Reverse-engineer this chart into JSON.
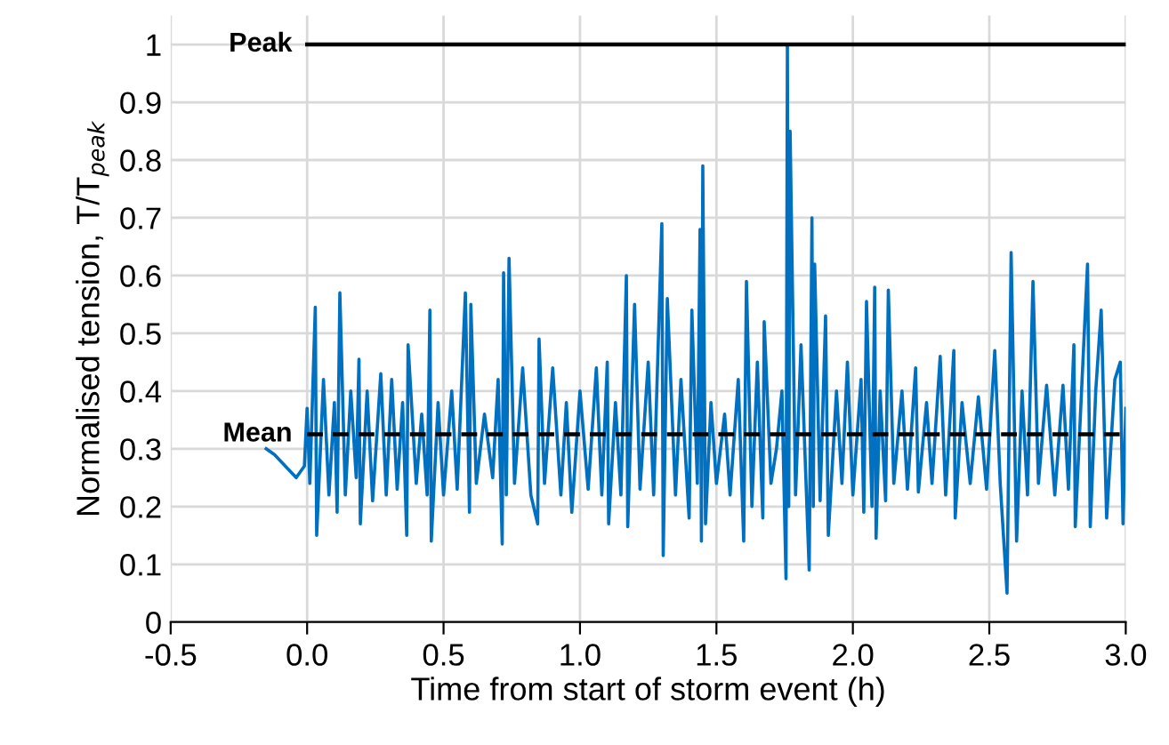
{
  "chart_data": {
    "type": "line",
    "xlabel": "Time from start of storm event (h)",
    "ylabel": "Normalised tension, T/T$_{peak}$",
    "xlim": [
      -0.5,
      3.0
    ],
    "xticks": [
      {
        "value": -0.5,
        "label": "-0.5"
      },
      {
        "value": 0,
        "label": "0.0"
      },
      {
        "value": 0.5,
        "label": "0.5"
      },
      {
        "value": 1,
        "label": "1.0"
      },
      {
        "value": 1.5,
        "label": "1.5"
      },
      {
        "value": 2,
        "label": "2.0"
      },
      {
        "value": 2.5,
        "label": "2.5"
      },
      {
        "value": 3,
        "label": "3.0"
      }
    ],
    "ylim": [
      0,
      1.05
    ],
    "yticks": [
      0,
      0.1,
      0.2,
      0.3,
      0.4,
      0.5,
      0.6,
      0.7,
      0.8,
      0.9,
      1
    ],
    "grid": true,
    "legend": false,
    "series": [
      {
        "color": "#0070c0",
        "line_style": "solid",
        "x": [
          -0.15,
          -0.12,
          -0.08,
          -0.04,
          -0.01,
          0.0,
          0.01,
          0.03,
          0.035,
          0.06,
          0.08,
          0.1,
          0.11,
          0.12,
          0.14,
          0.16,
          0.18,
          0.19,
          0.195,
          0.22,
          0.24,
          0.27,
          0.29,
          0.31,
          0.33,
          0.35,
          0.365,
          0.37,
          0.4,
          0.42,
          0.44,
          0.45,
          0.455,
          0.48,
          0.5,
          0.53,
          0.55,
          0.58,
          0.595,
          0.6,
          0.62,
          0.65,
          0.68,
          0.7,
          0.715,
          0.72,
          0.73,
          0.74,
          0.76,
          0.79,
          0.82,
          0.845,
          0.85,
          0.87,
          0.9,
          0.93,
          0.95,
          0.97,
          1.0,
          1.03,
          1.06,
          1.08,
          1.1,
          1.105,
          1.13,
          1.15,
          1.17,
          1.175,
          1.2,
          1.22,
          1.25,
          1.27,
          1.3,
          1.305,
          1.32,
          1.35,
          1.37,
          1.4,
          1.41,
          1.43,
          1.44,
          1.445,
          1.45,
          1.46,
          1.48,
          1.5,
          1.53,
          1.55,
          1.58,
          1.6,
          1.61,
          1.63,
          1.65,
          1.67,
          1.675,
          1.7,
          1.72,
          1.74,
          1.755,
          1.76,
          1.765,
          1.77,
          1.79,
          1.81,
          1.84,
          1.85,
          1.855,
          1.86,
          1.88,
          1.9,
          1.91,
          1.94,
          1.96,
          1.98,
          2.0,
          2.03,
          2.04,
          2.05,
          2.07,
          2.08,
          2.085,
          2.1,
          2.12,
          2.13,
          2.15,
          2.18,
          2.2,
          2.23,
          2.24,
          2.27,
          2.29,
          2.32,
          2.34,
          2.37,
          2.375,
          2.4,
          2.43,
          2.46,
          2.49,
          2.52,
          2.54,
          2.565,
          2.58,
          2.6,
          2.62,
          2.64,
          2.66,
          2.68,
          2.71,
          2.74,
          2.77,
          2.79,
          2.81,
          2.815,
          2.84,
          2.86,
          2.87,
          2.89,
          2.91,
          2.93,
          2.96,
          2.98,
          2.99,
          3.0
        ],
        "values": [
          0.3,
          0.29,
          0.27,
          0.25,
          0.27,
          0.37,
          0.24,
          0.545,
          0.15,
          0.42,
          0.22,
          0.38,
          0.19,
          0.57,
          0.22,
          0.4,
          0.25,
          0.455,
          0.17,
          0.4,
          0.21,
          0.43,
          0.22,
          0.42,
          0.23,
          0.38,
          0.15,
          0.48,
          0.24,
          0.36,
          0.22,
          0.54,
          0.14,
          0.38,
          0.22,
          0.4,
          0.23,
          0.57,
          0.19,
          0.55,
          0.24,
          0.36,
          0.25,
          0.42,
          0.135,
          0.605,
          0.22,
          0.63,
          0.24,
          0.44,
          0.22,
          0.17,
          0.49,
          0.24,
          0.44,
          0.22,
          0.38,
          0.19,
          0.4,
          0.23,
          0.44,
          0.22,
          0.45,
          0.17,
          0.38,
          0.22,
          0.6,
          0.165,
          0.55,
          0.23,
          0.45,
          0.22,
          0.69,
          0.115,
          0.56,
          0.22,
          0.42,
          0.18,
          0.54,
          0.24,
          0.68,
          0.14,
          0.79,
          0.17,
          0.38,
          0.24,
          0.36,
          0.22,
          0.42,
          0.14,
          0.59,
          0.2,
          0.45,
          0.18,
          0.52,
          0.24,
          0.3,
          0.4,
          0.075,
          1.0,
          0.2,
          0.85,
          0.22,
          0.48,
          0.09,
          0.7,
          0.2,
          0.62,
          0.21,
          0.53,
          0.15,
          0.4,
          0.24,
          0.45,
          0.22,
          0.42,
          0.19,
          0.555,
          0.2,
          0.58,
          0.145,
          0.4,
          0.21,
          0.575,
          0.24,
          0.4,
          0.23,
          0.44,
          0.225,
          0.38,
          0.24,
          0.46,
          0.22,
          0.47,
          0.18,
          0.38,
          0.24,
          0.39,
          0.23,
          0.47,
          0.24,
          0.05,
          0.64,
          0.14,
          0.4,
          0.22,
          0.59,
          0.24,
          0.41,
          0.22,
          0.41,
          0.23,
          0.48,
          0.165,
          0.42,
          0.62,
          0.165,
          0.4,
          0.54,
          0.18,
          0.42,
          0.45,
          0.17,
          0.37
        ]
      },
      {
        "name": "Peak",
        "color": "#000000",
        "line_style": "solid",
        "x": [
          0,
          3.0
        ],
        "values": [
          1,
          1
        ]
      },
      {
        "name": "Mean",
        "color": "#000000",
        "line_style": "dashed",
        "x": [
          0,
          3.0
        ],
        "values": [
          0.325,
          0.325
        ]
      }
    ]
  }
}
